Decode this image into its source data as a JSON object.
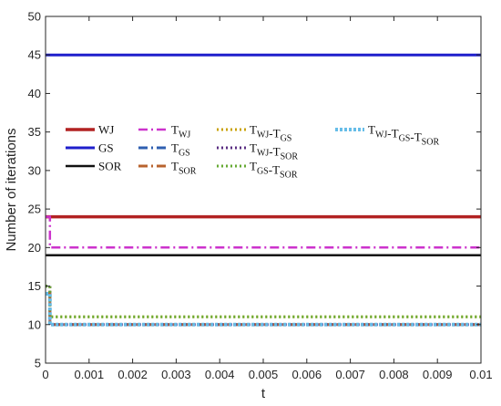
{
  "chart_data": {
    "type": "line",
    "title": "",
    "xlabel": "t",
    "ylabel": "Number of iterations",
    "xlim": [
      0,
      0.01
    ],
    "ylim": [
      5,
      50
    ],
    "x_ticks": [
      0,
      0.001,
      0.002,
      0.003,
      0.004,
      0.005,
      0.006,
      0.007,
      0.008,
      0.009,
      0.01
    ],
    "x_tick_labels": [
      "0",
      "0.001",
      "0.002",
      "0.003",
      "0.004",
      "0.005",
      "0.006",
      "0.007",
      "0.008",
      "0.009",
      "0.01"
    ],
    "y_ticks": [
      5,
      10,
      15,
      20,
      25,
      30,
      35,
      40,
      45,
      50
    ],
    "y_tick_labels": [
      "5",
      "10",
      "15",
      "20",
      "25",
      "30",
      "35",
      "40",
      "45",
      "50"
    ],
    "grid": false,
    "legend_placement": "center-left, inside",
    "series": [
      {
        "name": "WJ",
        "label_main": "WJ",
        "label_parts": [],
        "color": "#b22222",
        "dash": "solid",
        "width": 3.5,
        "points": [
          [
            0,
            24
          ],
          [
            0.01,
            24
          ]
        ]
      },
      {
        "name": "GS",
        "label_main": "GS",
        "label_parts": [],
        "color": "#1f1fcc",
        "dash": "solid",
        "width": 3,
        "points": [
          [
            0,
            45
          ],
          [
            0.01,
            45
          ]
        ]
      },
      {
        "name": "SOR",
        "label_main": "SOR",
        "label_parts": [],
        "color": "#111111",
        "dash": "solid",
        "width": 2.5,
        "points": [
          [
            0,
            19
          ],
          [
            0.01,
            19
          ]
        ]
      },
      {
        "name": "T_WJ",
        "label_main": "",
        "label_parts": [
          [
            "T",
            "WJ"
          ]
        ],
        "color": "#cc33cc",
        "dash": "10,4,2,4",
        "width": 2.5,
        "points": [
          [
            0,
            24
          ],
          [
            0.0001,
            24
          ],
          [
            0.0001,
            20
          ],
          [
            0.01,
            20
          ]
        ]
      },
      {
        "name": "T_GS",
        "label_main": "",
        "label_parts": [
          [
            "T",
            "GS"
          ]
        ],
        "color": "#2f5fb0",
        "dash": "10,4,2,4",
        "width": 3,
        "points": [
          [
            0,
            14
          ],
          [
            0.0001,
            14
          ],
          [
            0.0001,
            10
          ],
          [
            0.01,
            10
          ]
        ]
      },
      {
        "name": "T_SOR",
        "label_main": "",
        "label_parts": [
          [
            "T",
            "SOR"
          ]
        ],
        "color": "#b8632e",
        "dash": "10,4,2,4",
        "width": 3,
        "points": [
          [
            0,
            14
          ],
          [
            0.0001,
            14
          ],
          [
            0.0001,
            10
          ],
          [
            0.01,
            10
          ]
        ]
      },
      {
        "name": "T_WJ-T_GS",
        "label_main": "",
        "label_parts": [
          [
            "T",
            "WJ"
          ],
          [
            "-T",
            "GS"
          ]
        ],
        "color": "#c8a000",
        "dash": "2,3",
        "width": 3,
        "points": [
          [
            0,
            15
          ],
          [
            0.0001,
            15
          ],
          [
            0.0001,
            11
          ],
          [
            0.01,
            11
          ]
        ]
      },
      {
        "name": "T_WJ-T_SOR",
        "label_main": "",
        "label_parts": [
          [
            "T",
            "WJ"
          ],
          [
            "-T",
            "SOR"
          ]
        ],
        "color": "#5a2d82",
        "dash": "2,3",
        "width": 3,
        "points": [
          [
            0,
            15
          ],
          [
            0.0001,
            15
          ],
          [
            0.0001,
            10
          ],
          [
            0.01,
            10
          ]
        ]
      },
      {
        "name": "T_GS-T_SOR",
        "label_main": "",
        "label_parts": [
          [
            "T",
            "GS"
          ],
          [
            "-T",
            "SOR"
          ]
        ],
        "color": "#66aa33",
        "dash": "2,3",
        "width": 3,
        "points": [
          [
            0,
            15
          ],
          [
            0.0001,
            15
          ],
          [
            0.0001,
            11
          ],
          [
            0.01,
            11
          ]
        ]
      },
      {
        "name": "T_WJ-T_GS-T_SOR",
        "label_main": "",
        "label_parts": [
          [
            "T",
            "WJ"
          ],
          [
            "-T",
            "GS"
          ],
          [
            "-T",
            "SOR"
          ]
        ],
        "color": "#66bde8",
        "dash": "3,2",
        "width": 4,
        "points": [
          [
            0,
            14
          ],
          [
            0.0001,
            14
          ],
          [
            0.0001,
            10
          ],
          [
            0.01,
            10
          ]
        ]
      }
    ]
  }
}
